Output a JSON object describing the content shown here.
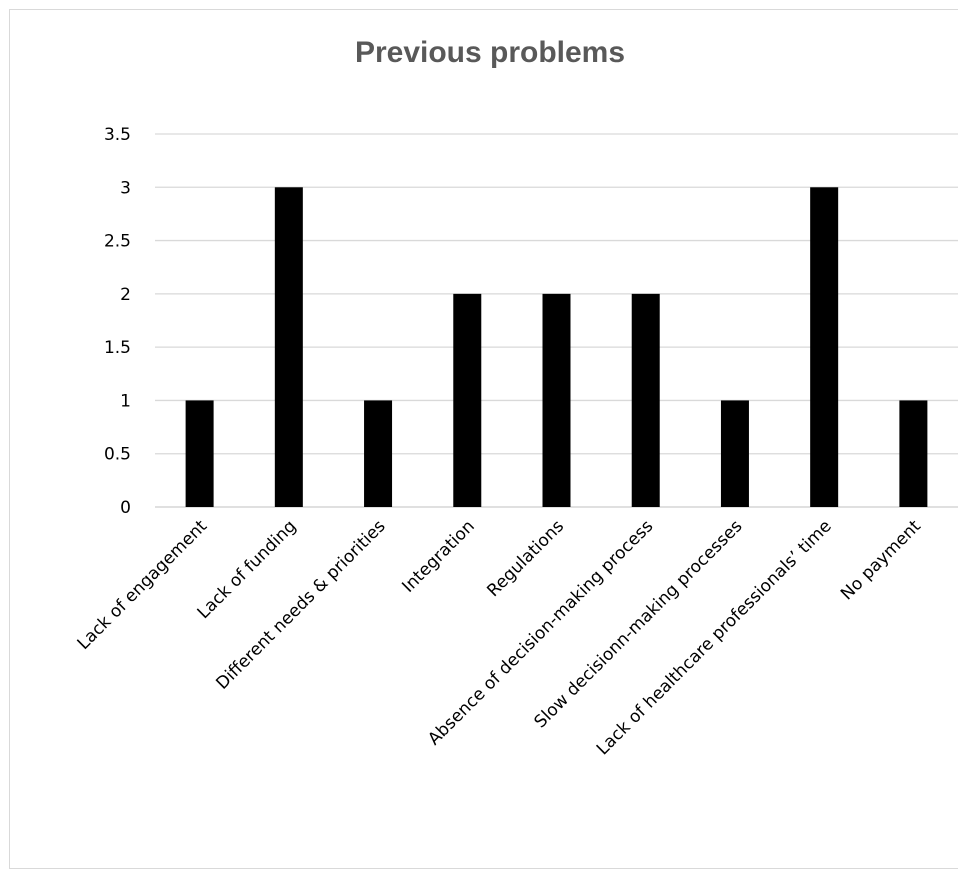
{
  "chart_data": {
    "type": "bar",
    "title": "Previous problems",
    "categories": [
      "Lack of engagement",
      "Lack of funding",
      "Different needs & priorities",
      "Integration",
      "Regulations",
      "Absence of decision-making process",
      "Slow decisionn-making processes",
      "Lack of healthcare professionals’ time",
      "No payment"
    ],
    "values": [
      1,
      3,
      1,
      2,
      2,
      2,
      1,
      3,
      1
    ],
    "yticks": [
      "0",
      "0.5",
      "1",
      "1.5",
      "2",
      "2.5",
      "3",
      "3.5"
    ],
    "ylim": [
      0,
      3.5
    ],
    "grid": true,
    "legend": "none",
    "bar_color": "#000000",
    "grid_color": "#d9d9d9"
  }
}
